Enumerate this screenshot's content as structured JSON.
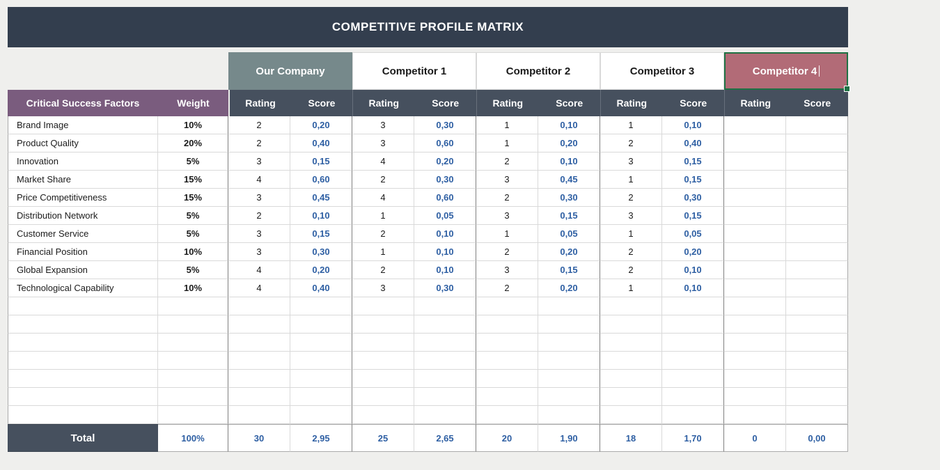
{
  "title_bar": {
    "title": "COMPETITIVE PROFILE MATRIX"
  },
  "header": {
    "factors_label": "Critical Success Factors",
    "weight_label": "Weight",
    "rating_label": "Rating",
    "score_label": "Score",
    "companies": [
      {
        "name": "Our Company"
      },
      {
        "name": "Competitor 1"
      },
      {
        "name": "Competitor 2"
      },
      {
        "name": "Competitor 3"
      },
      {
        "name": "Competitor 4",
        "selected": true
      }
    ]
  },
  "rows": [
    {
      "factor": "Brand Image",
      "weight": "10%",
      "values": [
        "2",
        "0,20",
        "3",
        "0,30",
        "1",
        "0,10",
        "1",
        "0,10",
        "",
        ""
      ]
    },
    {
      "factor": "Product Quality",
      "weight": "20%",
      "values": [
        "2",
        "0,40",
        "3",
        "0,60",
        "1",
        "0,20",
        "2",
        "0,40",
        "",
        ""
      ]
    },
    {
      "factor": "Innovation",
      "weight": "5%",
      "values": [
        "3",
        "0,15",
        "4",
        "0,20",
        "2",
        "0,10",
        "3",
        "0,15",
        "",
        ""
      ]
    },
    {
      "factor": "Market Share",
      "weight": "15%",
      "values": [
        "4",
        "0,60",
        "2",
        "0,30",
        "3",
        "0,45",
        "1",
        "0,15",
        "",
        ""
      ]
    },
    {
      "factor": "Price Competitiveness",
      "weight": "15%",
      "values": [
        "3",
        "0,45",
        "4",
        "0,60",
        "2",
        "0,30",
        "2",
        "0,30",
        "",
        ""
      ]
    },
    {
      "factor": "Distribution Network",
      "weight": "5%",
      "values": [
        "2",
        "0,10",
        "1",
        "0,05",
        "3",
        "0,15",
        "3",
        "0,15",
        "",
        ""
      ]
    },
    {
      "factor": "Customer Service",
      "weight": "5%",
      "values": [
        "3",
        "0,15",
        "2",
        "0,10",
        "1",
        "0,05",
        "1",
        "0,05",
        "",
        ""
      ]
    },
    {
      "factor": "Financial Position",
      "weight": "10%",
      "values": [
        "3",
        "0,30",
        "1",
        "0,10",
        "2",
        "0,20",
        "2",
        "0,20",
        "",
        ""
      ]
    },
    {
      "factor": "Global Expansion",
      "weight": "5%",
      "values": [
        "4",
        "0,20",
        "2",
        "0,10",
        "3",
        "0,15",
        "2",
        "0,10",
        "",
        ""
      ]
    },
    {
      "factor": "Technological Capability",
      "weight": "10%",
      "values": [
        "4",
        "0,40",
        "3",
        "0,30",
        "2",
        "0,20",
        "1",
        "0,10",
        "",
        ""
      ]
    }
  ],
  "empty_row_count": 7,
  "total": {
    "label": "Total",
    "weight": "100%",
    "values": [
      "30",
      "2,95",
      "25",
      "2,65",
      "20",
      "1,90",
      "18",
      "1,70",
      "0",
      "0,00"
    ]
  },
  "colors": {
    "page_bg": "#EFEFED",
    "title_bar": "#333E4E",
    "header_dark": "#46505E",
    "factors_header": "#7A5C7E",
    "our_company": "#76898B",
    "competitor_selected": "#B26B77",
    "selection_border": "#1F7244",
    "score_text": "#2E5FA3"
  }
}
